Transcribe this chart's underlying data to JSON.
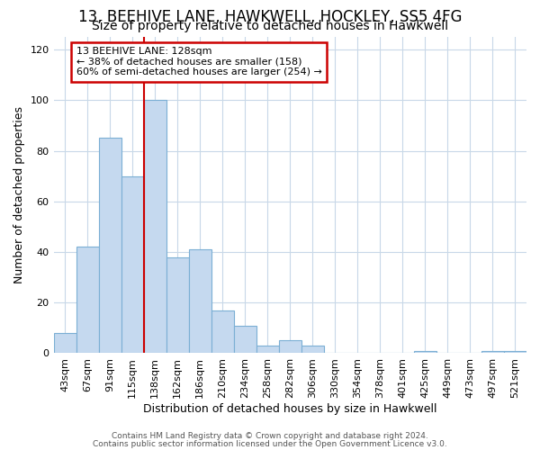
{
  "title": "13, BEEHIVE LANE, HAWKWELL, HOCKLEY, SS5 4FG",
  "subtitle": "Size of property relative to detached houses in Hawkwell",
  "xlabel": "Distribution of detached houses by size in Hawkwell",
  "ylabel": "Number of detached properties",
  "categories": [
    "43sqm",
    "67sqm",
    "91sqm",
    "115sqm",
    "138sqm",
    "162sqm",
    "186sqm",
    "210sqm",
    "234sqm",
    "258sqm",
    "282sqm",
    "306sqm",
    "330sqm",
    "354sqm",
    "378sqm",
    "401sqm",
    "425sqm",
    "449sqm",
    "473sqm",
    "497sqm",
    "521sqm"
  ],
  "values": [
    8,
    42,
    85,
    70,
    100,
    38,
    41,
    17,
    11,
    3,
    5,
    3,
    0,
    0,
    0,
    0,
    1,
    0,
    0,
    1,
    1
  ],
  "bar_color": "#c5d9ef",
  "bar_edge_color": "#7bafd4",
  "red_line_index": 4,
  "annotation_line1": "13 BEEHIVE LANE: 128sqm",
  "annotation_line2": "← 38% of detached houses are smaller (158)",
  "annotation_line3": "60% of semi-detached houses are larger (254) →",
  "annotation_box_color": "#ffffff",
  "annotation_box_edge_color": "#cc0000",
  "red_line_color": "#cc0000",
  "plot_bg_color": "#ffffff",
  "fig_bg_color": "#ffffff",
  "grid_color": "#c8d8e8",
  "ylim": [
    0,
    125
  ],
  "yticks": [
    0,
    20,
    40,
    60,
    80,
    100,
    120
  ],
  "title_fontsize": 12,
  "subtitle_fontsize": 10,
  "label_fontsize": 9,
  "tick_fontsize": 8,
  "footer_line1": "Contains HM Land Registry data © Crown copyright and database right 2024.",
  "footer_line2": "Contains public sector information licensed under the Open Government Licence v3.0."
}
